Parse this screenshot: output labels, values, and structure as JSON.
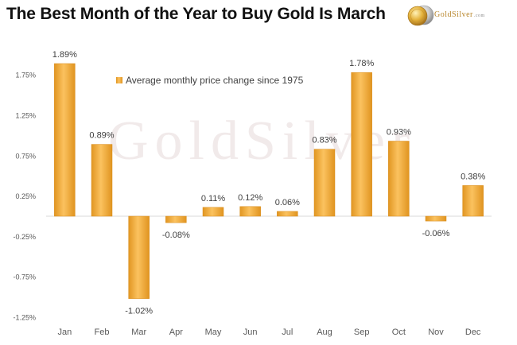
{
  "header": {
    "title": "The Best Month of the Year to Buy Gold Is March",
    "logo_text": "GoldSilver",
    "logo_suffix": ".com",
    "logo_icon": "gold-silver-coins-icon"
  },
  "watermark": {
    "text": "GoldSilver"
  },
  "colors": {
    "bar_light": "#f9bd5c",
    "bar_mid": "#f2a534",
    "bar_dark": "#d98c1c",
    "axis": "#d9d9d9",
    "tick_text": "#595959",
    "label_text": "#3f3f3f"
  },
  "chart_data": {
    "type": "bar",
    "title": "The Best Month of the Year to Buy Gold Is March",
    "categories": [
      "Jan",
      "Feb",
      "Mar",
      "Apr",
      "May",
      "Jun",
      "Jul",
      "Aug",
      "Sep",
      "Oct",
      "Nov",
      "Dec"
    ],
    "series": [
      {
        "name": "Average monthly price change since 1975",
        "values": [
          1.89,
          0.89,
          -1.02,
          -0.08,
          0.11,
          0.12,
          0.06,
          0.83,
          1.78,
          0.93,
          -0.06,
          0.38
        ],
        "labels": [
          "1.89%",
          "0.89%",
          "-1.02%",
          "-0.08%",
          "0.11%",
          "0.12%",
          "0.06%",
          "0.83%",
          "1.78%",
          "0.93%",
          "-0.06%",
          "0.38%"
        ]
      }
    ],
    "yticks": [
      1.75,
      1.25,
      0.75,
      0.25,
      -0.25,
      -0.75,
      -1.25
    ],
    "ytick_labels": [
      "1.75%",
      "1.25%",
      "0.75%",
      "0.25%",
      "-0.25%",
      "-0.75%",
      "-1.25%"
    ],
    "ylim": [
      -1.25,
      1.89
    ],
    "grid": false,
    "legend_position": "top-center",
    "xlabel": "",
    "ylabel": ""
  }
}
